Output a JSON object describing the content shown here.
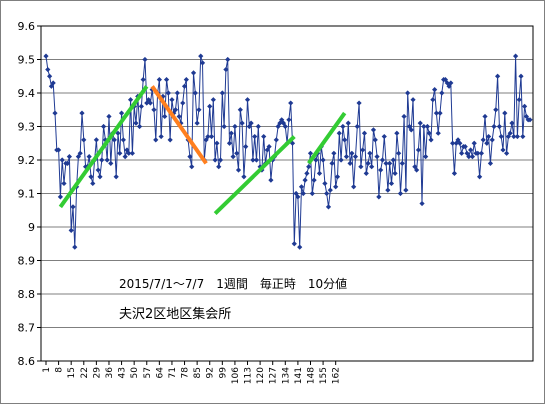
{
  "chart_data": {
    "type": "line",
    "title": "",
    "xlabel": "",
    "ylabel": "",
    "ylim": [
      8.6,
      9.6
    ],
    "yticks": [
      "9.6",
      "9.5",
      "9.4",
      "9.3",
      "9.2",
      "9.1",
      "9",
      "8.9",
      "8.8",
      "8.7",
      "8.6"
    ],
    "xticks": [
      "1",
      "8",
      "15",
      "22",
      "29",
      "36",
      "43",
      "50",
      "57",
      "64",
      "71",
      "78",
      "85",
      "92",
      "99",
      "106",
      "113",
      "120",
      "127",
      "134",
      "141",
      "148",
      "155",
      "162"
    ],
    "grid": "horizontal",
    "annotations": [
      "2015/7/1～7/7　1週間　毎正時　10分値",
      "夫沢2区地区集会所"
    ],
    "series_color": "#1f3a93",
    "values": [
      9.51,
      9.47,
      9.45,
      9.42,
      9.43,
      9.34,
      9.23,
      9.23,
      9.09,
      9.2,
      9.13,
      9.19,
      9.19,
      9.21,
      8.99,
      9.06,
      8.94,
      9.12,
      9.21,
      9.22,
      9.34,
      9.26,
      9.18,
      9.18,
      9.21,
      9.15,
      9.13,
      9.2,
      9.26,
      9.17,
      9.15,
      9.2,
      9.3,
      9.26,
      9.2,
      9.33,
      9.19,
      9.28,
      9.26,
      9.15,
      9.28,
      9.22,
      9.34,
      9.26,
      9.21,
      9.23,
      9.22,
      9.38,
      9.22,
      9.36,
      9.31,
      9.39,
      9.3,
      9.36,
      9.44,
      9.5,
      9.37,
      9.38,
      9.37,
      9.41,
      9.35,
      9.26,
      9.4,
      9.44,
      9.27,
      9.39,
      9.33,
      9.44,
      9.4,
      9.26,
      9.38,
      9.34,
      9.35,
      9.4,
      9.33,
      9.31,
      9.37,
      9.42,
      9.44,
      9.26,
      9.21,
      9.18,
      9.46,
      9.4,
      9.31,
      9.35,
      9.51,
      9.49,
      9.2,
      9.26,
      9.27,
      9.36,
      9.27,
      9.38,
      9.2,
      9.25,
      9.18,
      9.2,
      9.4,
      9.3,
      9.47,
      9.5,
      9.25,
      9.28,
      9.21,
      9.3,
      9.22,
      9.17,
      9.35,
      9.31,
      9.15,
      9.24,
      9.38,
      9.3,
      9.31,
      9.2,
      9.27,
      9.2,
      9.3,
      9.18,
      9.17,
      9.27,
      9.19,
      9.23,
      9.24,
      9.14,
      9.2,
      9.21,
      9.26,
      9.3,
      9.31,
      9.32,
      9.31,
      9.3,
      9.25,
      9.32,
      9.37,
      9.25,
      8.95,
      9.1,
      9.09,
      8.94,
      9.12,
      9.1,
      9.14,
      9.16,
      9.18,
      9.22,
      9.1,
      9.14,
      9.2,
      9.22,
      9.16,
      9.24,
      9.2,
      9.13,
      9.1,
      9.06,
      9.11,
      9.19,
      9.22,
      9.12,
      9.15,
      9.28,
      9.2,
      9.3,
      9.26,
      9.21,
      9.31,
      9.19,
      9.22,
      9.12,
      9.21,
      9.3,
      9.37,
      9.18,
      9.23,
      9.28,
      9.16,
      9.19,
      9.22,
      9.18,
      9.29,
      9.26,
      9.21,
      9.09,
      9.17,
      9.2,
      9.27,
      9.19,
      9.11,
      9.19,
      9.13,
      9.2,
      9.16,
      9.28,
      9.22,
      9.1,
      9.19,
      9.33,
      9.11,
      9.4,
      9.3,
      9.29,
      9.38,
      9.18,
      9.17,
      9.23,
      9.31,
      9.07,
      9.3,
      9.21,
      9.3,
      9.28,
      9.26,
      9.38,
      9.41,
      9.34,
      9.28,
      9.34,
      9.4,
      9.44,
      9.44,
      9.43,
      9.42,
      9.43,
      9.25,
      9.16,
      9.25,
      9.26,
      9.25,
      9.22,
      9.24,
      9.24,
      9.22,
      9.21,
      9.23,
      9.21,
      9.25,
      9.22,
      9.22,
      9.15,
      9.22,
      9.26,
      9.33,
      9.25,
      9.27,
      9.19,
      9.26,
      9.3,
      9.35,
      9.45,
      9.3,
      9.27,
      9.23,
      9.34,
      9.22,
      9.27,
      9.28,
      9.31,
      9.27,
      9.51,
      9.27,
      9.38,
      9.45,
      9.27,
      9.36,
      9.33,
      9.32,
      9.32
    ],
    "trend_lines": [
      {
        "color": "#33cc33",
        "from": [
          9,
          9.06
        ],
        "to": [
          57,
          9.42
        ]
      },
      {
        "color": "#ff7f1f",
        "from": [
          60,
          9.42
        ],
        "to": [
          90,
          9.19
        ]
      },
      {
        "color": "#33cc33",
        "from": [
          95,
          9.04
        ],
        "to": [
          139,
          9.27
        ]
      },
      {
        "color": "#33cc33",
        "from": [
          147,
          9.19
        ],
        "to": [
          167,
          9.34
        ]
      }
    ]
  }
}
